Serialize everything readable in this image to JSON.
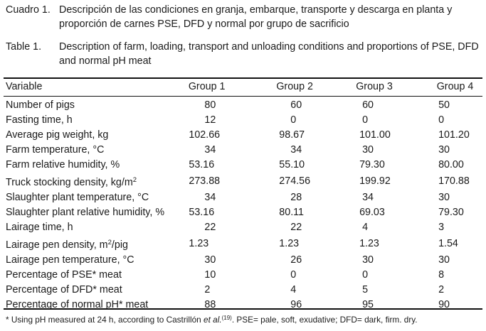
{
  "caption_es": {
    "label": "Cuadro 1.",
    "line1": "Descripción de las condiciones en granja, embarque, transporte y descarga en planta y",
    "line2": "proporción de carnes PSE, DFD y normal por grupo de sacrificio"
  },
  "caption_en": {
    "label": "Table 1.",
    "line1": "Description of farm, loading, transport and unloading conditions and proportions of PSE, DFD",
    "line2": "and normal pH meat"
  },
  "table": {
    "headers": [
      "Variable",
      "Group 1",
      "Group 2",
      "Group 3",
      "Group 4"
    ],
    "rows": [
      {
        "label": "Number of pigs",
        "values": [
          "80",
          "60",
          "60",
          "50"
        ]
      },
      {
        "label": "Fasting time, h",
        "values": [
          "12",
          "0",
          "0",
          "0"
        ]
      },
      {
        "label": "Average pig weight, kg",
        "values": [
          "102.66",
          "98.67",
          "101.00",
          "101.20"
        ]
      },
      {
        "label": "Farm temperature, °C",
        "values": [
          "34",
          "34",
          "30",
          "30"
        ]
      },
      {
        "label": "Farm relative humidity, %",
        "values": [
          "53.16",
          "55.10",
          "79.30",
          "80.00"
        ]
      },
      {
        "label": "Truck stocking density, kg/m",
        "sup": "2",
        "values": [
          "273.88",
          "274.56",
          "199.92",
          "170.88"
        ]
      },
      {
        "label": "Slaughter plant temperature, °C",
        "values": [
          "34",
          "28",
          "34",
          "30"
        ]
      },
      {
        "label": "Slaughter plant relative humidity, %",
        "values": [
          "53.16",
          "80.11",
          "69.03",
          "79.30"
        ]
      },
      {
        "label": "Lairage time, h",
        "values": [
          "22",
          "22",
          "4",
          "3"
        ]
      },
      {
        "label": "Lairage pen density,  m",
        "sup": "2",
        "suffix": "/pig",
        "values": [
          "1.23",
          "1.23",
          "1.23",
          "1.54"
        ]
      },
      {
        "label": "Lairage pen temperature, °C",
        "values": [
          "30",
          "26",
          "30",
          "30"
        ]
      },
      {
        "label": "Percentage of PSE* meat",
        "values": [
          "10",
          "0",
          "0",
          "8"
        ]
      },
      {
        "label": "Percentage of DFD* meat",
        "values": [
          "2",
          "4",
          "5",
          "2"
        ]
      },
      {
        "label": "Percentage of normal pH* meat",
        "values": [
          "88",
          "96",
          "95",
          "90"
        ]
      }
    ]
  },
  "footnote": {
    "pre": "* Using pH measured at 24 h, according to Castrillón ",
    "italic": "et al.",
    "ref": "(19)",
    "post": ". PSE= pale, soft, exudative; DFD= dark, firm. dry."
  }
}
